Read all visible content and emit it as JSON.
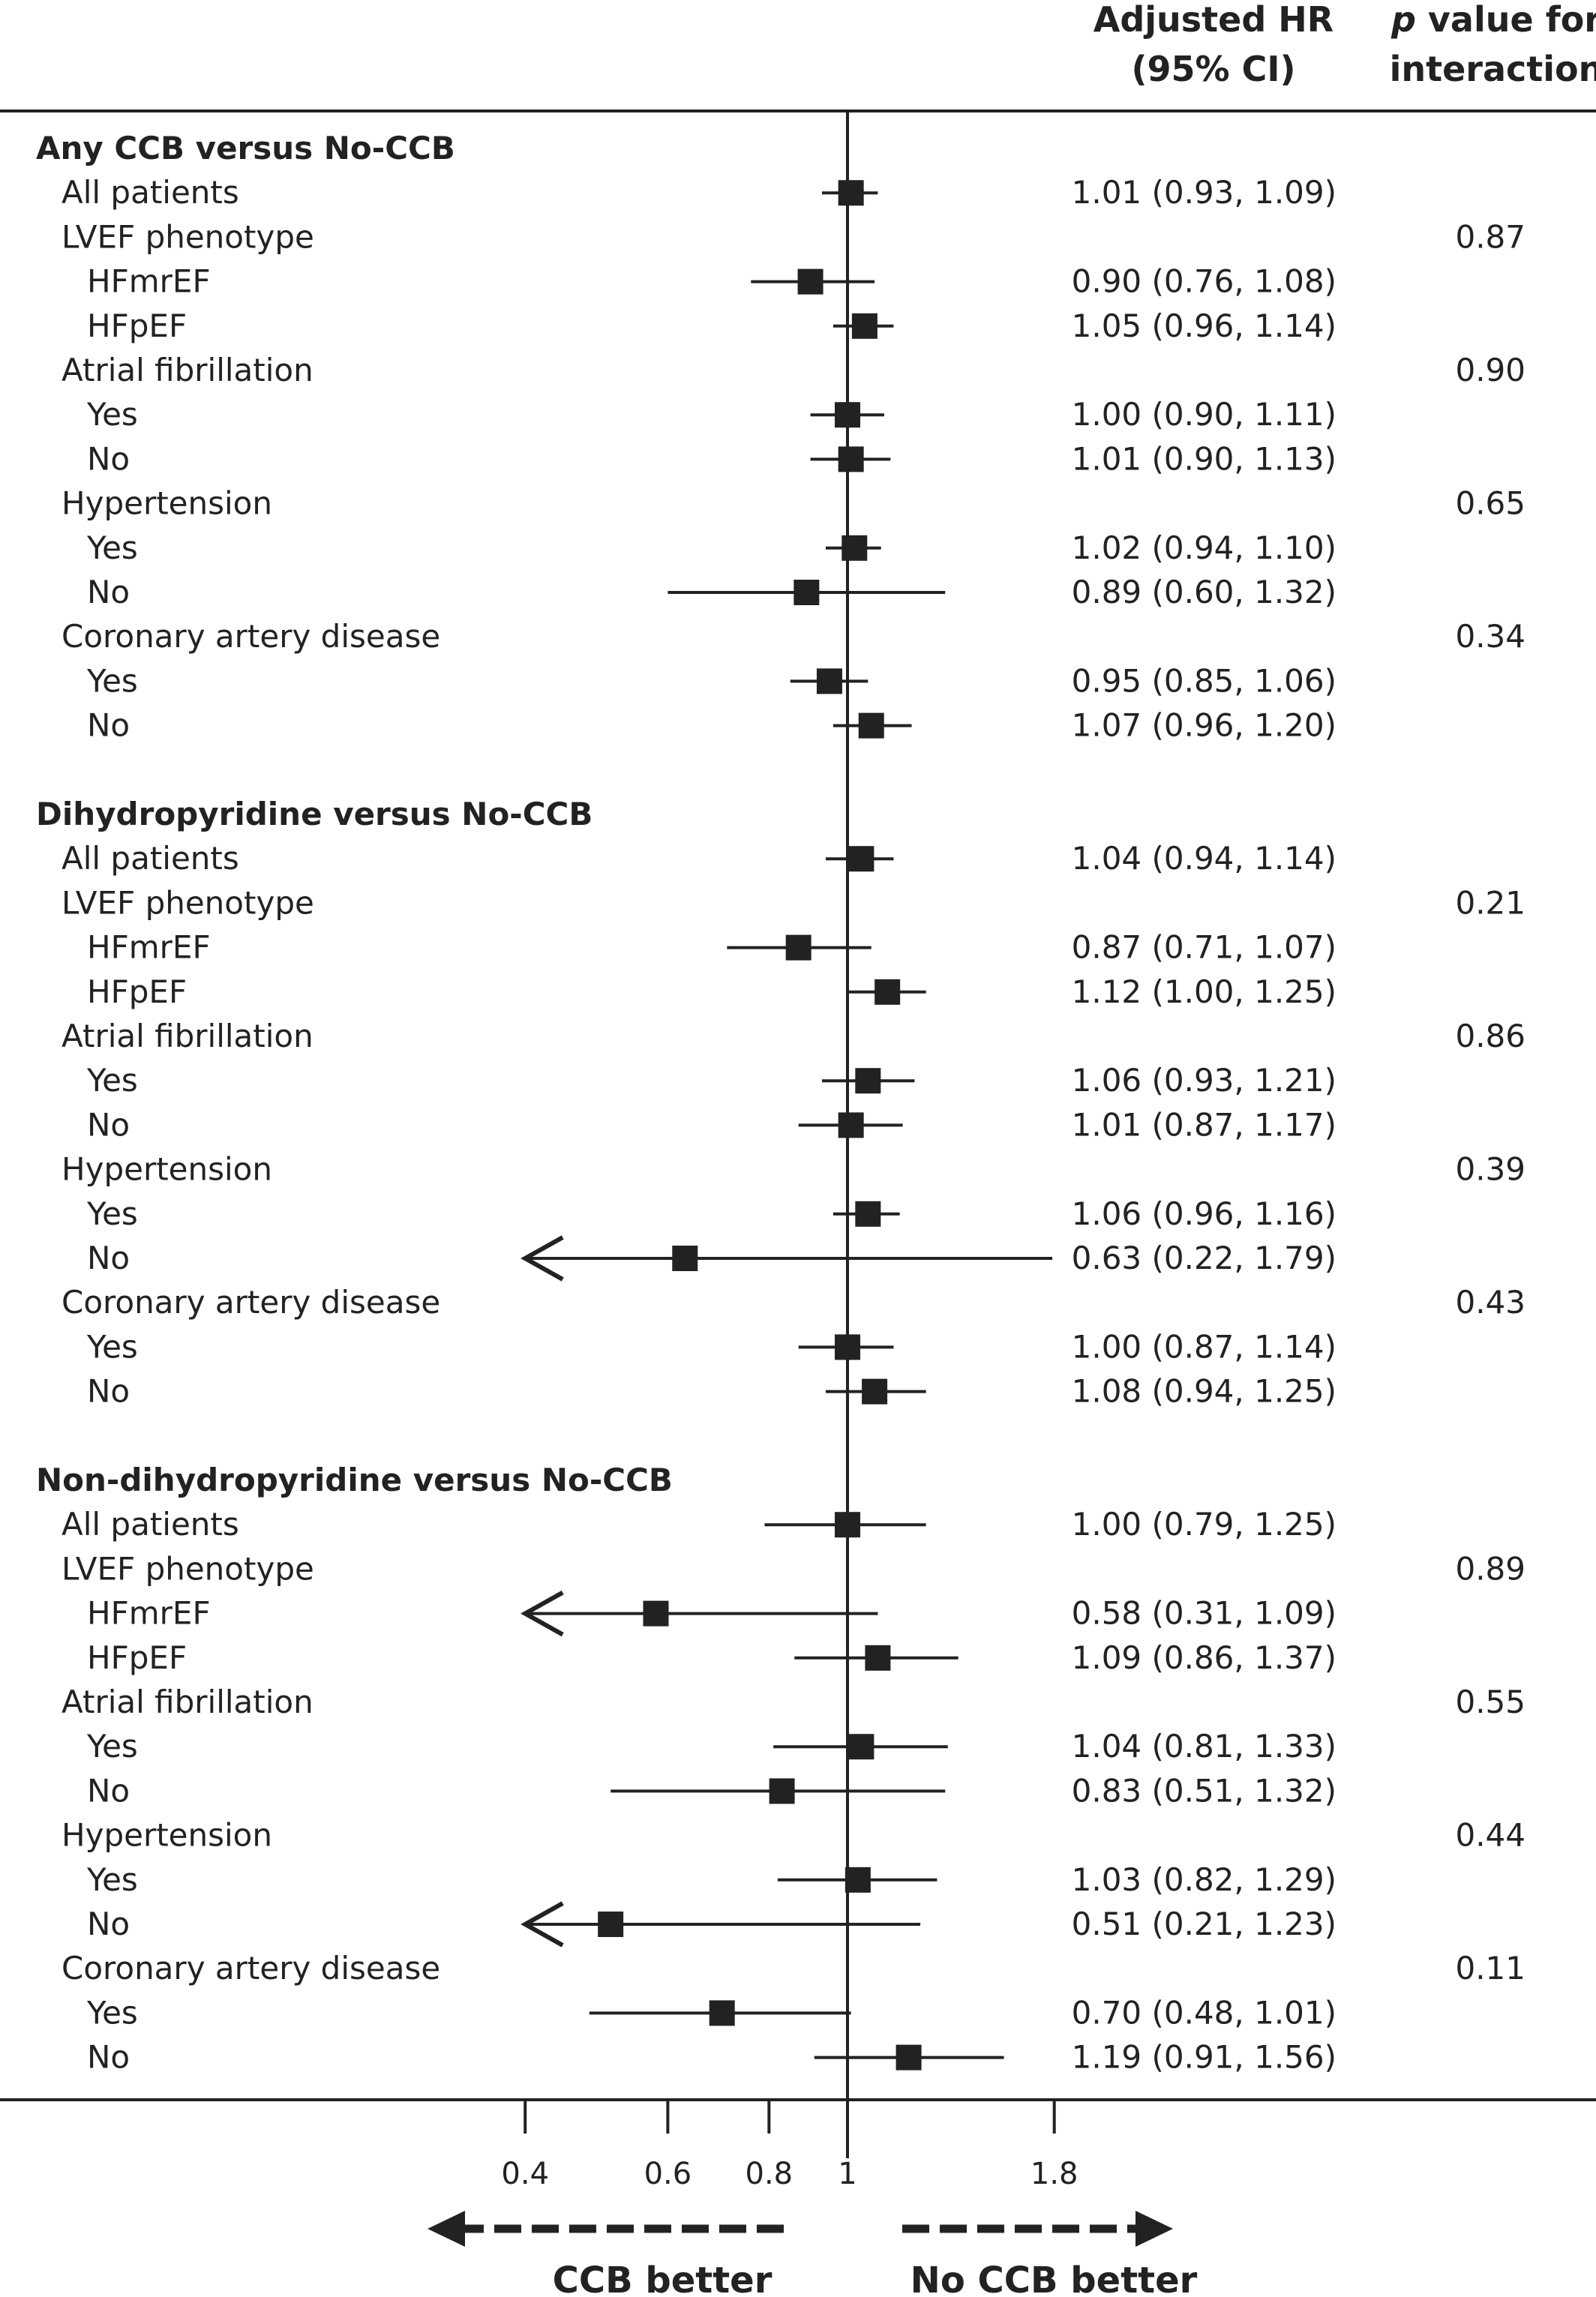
{
  "header": {
    "hr_line1": "Adjusted HR",
    "hr_line2": "(95% CI)",
    "p_line1_italic": "p",
    "p_line1_rest": " value for",
    "p_line2": "interaction"
  },
  "chart_data": {
    "type": "forest",
    "x_scale": "log",
    "reference_value": 1,
    "xlim": [
      0.4,
      1.8
    ],
    "x_ticks": [
      {
        "value": 0.4,
        "label": "0.4"
      },
      {
        "value": 0.6,
        "label": "0.6"
      },
      {
        "value": 0.8,
        "label": "0.8"
      },
      {
        "value": 1,
        "label": "1"
      },
      {
        "value": 1.8,
        "label": "1.8"
      }
    ],
    "direction_left": "CCB better",
    "direction_right": "No CCB better",
    "groups": [
      {
        "title": "Any CCB versus No-CCB",
        "rows": [
          {
            "label": "All patients",
            "indent": 1,
            "hr": 1.01,
            "lo": 0.93,
            "hi": 1.09,
            "text": "1.01 (0.93, 1.09)",
            "p": ""
          },
          {
            "label": "LVEF phenotype",
            "indent": 1,
            "p": "0.87"
          },
          {
            "label": "HFmrEF",
            "indent": 2,
            "hr": 0.9,
            "lo": 0.76,
            "hi": 1.08,
            "text": "0.90 (0.76, 1.08)",
            "p": ""
          },
          {
            "label": "HFpEF",
            "indent": 2,
            "hr": 1.05,
            "lo": 0.96,
            "hi": 1.14,
            "text": "1.05 (0.96, 1.14)",
            "p": ""
          },
          {
            "label": "Atrial fibrillation",
            "indent": 1,
            "p": "0.90"
          },
          {
            "label": "Yes",
            "indent": 2,
            "hr": 1.0,
            "lo": 0.9,
            "hi": 1.11,
            "text": "1.00 (0.90, 1.11)",
            "p": ""
          },
          {
            "label": "No",
            "indent": 2,
            "hr": 1.01,
            "lo": 0.9,
            "hi": 1.13,
            "text": "1.01 (0.90, 1.13)",
            "p": ""
          },
          {
            "label": "Hypertension",
            "indent": 1,
            "p": "0.65"
          },
          {
            "label": "Yes",
            "indent": 2,
            "hr": 1.02,
            "lo": 0.94,
            "hi": 1.1,
            "text": "1.02 (0.94, 1.10)",
            "p": ""
          },
          {
            "label": "No",
            "indent": 2,
            "hr": 0.89,
            "lo": 0.6,
            "hi": 1.32,
            "text": "0.89 (0.60, 1.32)",
            "p": ""
          },
          {
            "label": "Coronary artery disease",
            "indent": 1,
            "p": "0.34"
          },
          {
            "label": "Yes",
            "indent": 2,
            "hr": 0.95,
            "lo": 0.85,
            "hi": 1.06,
            "text": "0.95 (0.85, 1.06)",
            "p": ""
          },
          {
            "label": "No",
            "indent": 2,
            "hr": 1.07,
            "lo": 0.96,
            "hi": 1.2,
            "text": "1.07 (0.96, 1.20)",
            "p": ""
          }
        ]
      },
      {
        "title": "Dihydropyridine versus No-CCB",
        "rows": [
          {
            "label": "All patients",
            "indent": 1,
            "hr": 1.04,
            "lo": 0.94,
            "hi": 1.14,
            "text": "1.04 (0.94, 1.14)",
            "p": ""
          },
          {
            "label": "LVEF phenotype",
            "indent": 1,
            "p": "0.21"
          },
          {
            "label": "HFmrEF",
            "indent": 2,
            "hr": 0.87,
            "lo": 0.71,
            "hi": 1.07,
            "text": "0.87 (0.71, 1.07)",
            "p": ""
          },
          {
            "label": "HFpEF",
            "indent": 2,
            "hr": 1.12,
            "lo": 1.0,
            "hi": 1.25,
            "text": "1.12 (1.00, 1.25)",
            "p": ""
          },
          {
            "label": "Atrial fibrillation",
            "indent": 1,
            "p": "0.86"
          },
          {
            "label": "Yes",
            "indent": 2,
            "hr": 1.06,
            "lo": 0.93,
            "hi": 1.21,
            "text": "1.06 (0.93, 1.21)",
            "p": ""
          },
          {
            "label": "No",
            "indent": 2,
            "hr": 1.01,
            "lo": 0.87,
            "hi": 1.17,
            "text": "1.01 (0.87, 1.17)",
            "p": ""
          },
          {
            "label": "Hypertension",
            "indent": 1,
            "p": "0.39"
          },
          {
            "label": "Yes",
            "indent": 2,
            "hr": 1.06,
            "lo": 0.96,
            "hi": 1.16,
            "text": "1.06 (0.96, 1.16)",
            "p": ""
          },
          {
            "label": "No",
            "indent": 2,
            "hr": 0.63,
            "lo": 0.22,
            "hi": 1.79,
            "text": "0.63 (0.22, 1.79)",
            "p": ""
          },
          {
            "label": "Coronary artery disease",
            "indent": 1,
            "p": "0.43"
          },
          {
            "label": "Yes",
            "indent": 2,
            "hr": 1.0,
            "lo": 0.87,
            "hi": 1.14,
            "text": "1.00 (0.87, 1.14)",
            "p": ""
          },
          {
            "label": "No",
            "indent": 2,
            "hr": 1.08,
            "lo": 0.94,
            "hi": 1.25,
            "text": "1.08 (0.94, 1.25)",
            "p": ""
          }
        ]
      },
      {
        "title": "Non-dihydropyridine versus No-CCB",
        "rows": [
          {
            "label": "All patients",
            "indent": 1,
            "hr": 1.0,
            "lo": 0.79,
            "hi": 1.25,
            "text": "1.00 (0.79, 1.25)",
            "p": ""
          },
          {
            "label": "LVEF phenotype",
            "indent": 1,
            "p": "0.89"
          },
          {
            "label": "HFmrEF",
            "indent": 2,
            "hr": 0.58,
            "lo": 0.31,
            "hi": 1.09,
            "text": "0.58 (0.31, 1.09)",
            "p": ""
          },
          {
            "label": "HFpEF",
            "indent": 2,
            "hr": 1.09,
            "lo": 0.86,
            "hi": 1.37,
            "text": "1.09 (0.86, 1.37)",
            "p": ""
          },
          {
            "label": "Atrial fibrillation",
            "indent": 1,
            "p": "0.55"
          },
          {
            "label": "Yes",
            "indent": 2,
            "hr": 1.04,
            "lo": 0.81,
            "hi": 1.33,
            "text": "1.04 (0.81, 1.33)",
            "p": ""
          },
          {
            "label": "No",
            "indent": 2,
            "hr": 0.83,
            "lo": 0.51,
            "hi": 1.32,
            "text": "0.83 (0.51, 1.32)",
            "p": ""
          },
          {
            "label": "Hypertension",
            "indent": 1,
            "p": "0.44"
          },
          {
            "label": "Yes",
            "indent": 2,
            "hr": 1.03,
            "lo": 0.82,
            "hi": 1.29,
            "text": "1.03 (0.82, 1.29)",
            "p": ""
          },
          {
            "label": "No",
            "indent": 2,
            "hr": 0.51,
            "lo": 0.21,
            "hi": 1.23,
            "text": "0.51 (0.21, 1.23)",
            "p": ""
          },
          {
            "label": "Coronary artery disease",
            "indent": 1,
            "p": "0.11"
          },
          {
            "label": "Yes",
            "indent": 2,
            "hr": 0.7,
            "lo": 0.48,
            "hi": 1.01,
            "text": "0.70 (0.48, 1.01)",
            "p": ""
          },
          {
            "label": "No",
            "indent": 2,
            "hr": 1.19,
            "lo": 0.91,
            "hi": 1.56,
            "text": "1.19 (0.91, 1.56)",
            "p": ""
          }
        ]
      }
    ]
  }
}
